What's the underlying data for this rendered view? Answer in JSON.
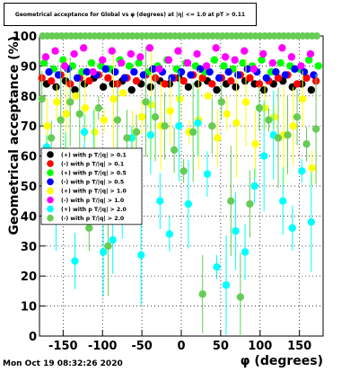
{
  "chart_data": {
    "type": "scatter",
    "title": "Geometrical acceptance for Global vs φ (degrees) at |η| <= 1.0 at pT > 0.11",
    "xlabel": "φ (degrees)",
    "ylabel": "Geometrical acceptance (%)",
    "xlim": [
      -180,
      180
    ],
    "ylim": [
      0,
      100
    ],
    "x_ticks": [
      -150,
      -100,
      -50,
      0,
      50,
      100,
      150
    ],
    "y_ticks": [
      0,
      10,
      20,
      30,
      40,
      50,
      60,
      70,
      80,
      90,
      100
    ],
    "grid": true,
    "legend_position": "left-middle",
    "timestamp": "Mon Oct 19 08:32:26 2020",
    "series": [
      {
        "name": "(+) with p T/|q| > 0.1",
        "color": "#000000",
        "x": [
          -171,
          -159,
          -147,
          -135,
          -123,
          -111,
          -99,
          -87,
          -75,
          -63,
          -51,
          -39,
          -27,
          -15,
          -3,
          9,
          21,
          33,
          45,
          57,
          69,
          81,
          93,
          105,
          117,
          129,
          141,
          153,
          165
        ],
        "y": [
          84,
          83,
          85,
          82,
          84,
          86,
          83,
          84,
          85,
          82,
          84,
          83,
          85,
          84,
          86,
          83,
          84,
          85,
          82,
          84,
          83,
          85,
          84,
          82,
          84,
          85,
          83,
          84,
          82
        ]
      },
      {
        "name": "(-) with p T/|q| > 0.1",
        "color": "#ff0000",
        "x": [
          -177,
          -165,
          -153,
          -141,
          -129,
          -117,
          -105,
          -93,
          -81,
          -69,
          -57,
          -45,
          -33,
          -21,
          -9,
          3,
          15,
          27,
          39,
          51,
          63,
          75,
          87,
          99,
          111,
          123,
          135,
          147,
          159,
          171
        ],
        "y": [
          86,
          85,
          87,
          84,
          86,
          85,
          87,
          86,
          84,
          86,
          85,
          87,
          86,
          84,
          86,
          85,
          87,
          86,
          84,
          86,
          85,
          87,
          86,
          84,
          85,
          86,
          87,
          84,
          86,
          85
        ]
      },
      {
        "name": "(+) with p T/|q| > 0.5",
        "color": "#00ff00",
        "x": [
          -174,
          -162,
          -150,
          -138,
          -126,
          -114,
          -102,
          -90,
          -78,
          -66,
          -54,
          -42,
          -30,
          -18,
          -6,
          6,
          18,
          30,
          42,
          54,
          66,
          78,
          90,
          102,
          114,
          126,
          138,
          150,
          162,
          174
        ],
        "y": [
          91,
          89,
          92,
          90,
          88,
          91,
          90,
          89,
          92,
          90,
          91,
          88,
          90,
          92,
          89,
          91,
          90,
          88,
          92,
          90,
          89,
          91,
          90,
          92,
          88,
          91,
          90,
          89,
          92,
          90
        ]
      },
      {
        "name": "(-) with p T/|q| > 0.5",
        "color": "#0000ff",
        "x": [
          -168,
          -156,
          -144,
          -132,
          -120,
          -108,
          -96,
          -84,
          -72,
          -60,
          -48,
          -36,
          -24,
          -12,
          0,
          12,
          24,
          36,
          48,
          60,
          72,
          84,
          96,
          108,
          120,
          132,
          144,
          156,
          168
        ],
        "y": [
          88,
          87,
          89,
          86,
          88,
          87,
          89,
          88,
          86,
          88,
          87,
          89,
          88,
          86,
          88,
          87,
          89,
          88,
          86,
          88,
          87,
          89,
          88,
          86,
          88,
          87,
          89,
          88,
          87
        ]
      },
      {
        "name": "(+) with p T/|q| > 1.0",
        "color": "#ffff00",
        "x": [
          -170,
          -158,
          -146,
          -134,
          -122,
          -110,
          -98,
          -86,
          -74,
          -62,
          -50,
          -38,
          -26,
          -14,
          -2,
          10,
          22,
          34,
          46,
          58,
          70,
          82,
          94,
          106,
          118,
          130,
          142,
          154,
          166
        ],
        "y": [
          70,
          78,
          74,
          80,
          76,
          68,
          72,
          79,
          81,
          66,
          73,
          77,
          70,
          75,
          79,
          68,
          72,
          80,
          66,
          74,
          71,
          78,
          64,
          76,
          73,
          67,
          70,
          79,
          56
        ]
      },
      {
        "name": "(-) with p T/|q| > 1.0",
        "color": "#ff00ff",
        "x": [
          -172,
          -160,
          -148,
          -136,
          -124,
          -112,
          -100,
          -88,
          -76,
          -64,
          -52,
          -40,
          -28,
          -16,
          -4,
          8,
          20,
          32,
          44,
          56,
          68,
          80,
          92,
          104,
          116,
          128,
          140,
          152,
          164
        ],
        "y": [
          93,
          95,
          90,
          94,
          96,
          88,
          92,
          95,
          91,
          94,
          93,
          96,
          89,
          92,
          95,
          91,
          94,
          90,
          96,
          93,
          92,
          95,
          89,
          94,
          91,
          96,
          93,
          90,
          94
        ]
      },
      {
        "name": "(+) with p T/|q| > 2.0",
        "color": "#00ffff",
        "x": [
          -171,
          -159,
          -147,
          -135,
          -123,
          -111,
          -99,
          -87,
          -75,
          -63,
          -51,
          -39,
          -27,
          -15,
          -3,
          9,
          21,
          33,
          45,
          57,
          69,
          81,
          93,
          105,
          117,
          129,
          141,
          153,
          165
        ],
        "y": [
          63,
          45,
          55,
          25,
          68,
          57,
          28,
          32,
          40,
          66,
          27,
          67,
          45,
          34,
          70,
          44,
          71,
          54,
          23,
          17,
          35,
          28,
          50,
          60,
          67,
          45,
          36,
          55,
          38
        ]
      },
      {
        "name": "(-) with p T/|q| > 2.0",
        "color": "#66cc55",
        "x": [
          -177,
          -165,
          -153,
          -141,
          -129,
          -117,
          -105,
          -93,
          -81,
          -69,
          -57,
          -45,
          -33,
          -21,
          -9,
          3,
          15,
          27,
          39,
          51,
          63,
          75,
          87,
          99,
          111,
          123,
          135,
          147,
          159,
          171
        ],
        "y": [
          79,
          66,
          72,
          78,
          74,
          36,
          76,
          30,
          72,
          66,
          68,
          78,
          73,
          70,
          62,
          55,
          68,
          14,
          70,
          78,
          45,
          13,
          44,
          76,
          72,
          66,
          67,
          73,
          64,
          69
        ]
      }
    ],
    "top_row_series": {
      "color": "#66cc55",
      "y": 100
    }
  },
  "footer": {
    "timestamp": "Mon Oct 19 08:32:26 2020"
  }
}
